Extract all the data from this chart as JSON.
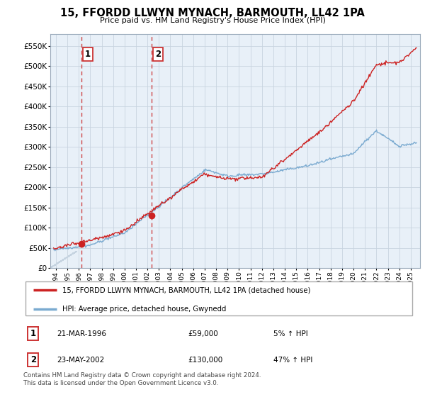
{
  "title": "15, FFORDD LLWYN MYNACH, BARMOUTH, LL42 1PA",
  "subtitle": "Price paid vs. HM Land Registry's House Price Index (HPI)",
  "legend_line1": "15, FFORDD LLWYN MYNACH, BARMOUTH, LL42 1PA (detached house)",
  "legend_line2": "HPI: Average price, detached house, Gwynedd",
  "footer": "Contains HM Land Registry data © Crown copyright and database right 2024.\nThis data is licensed under the Open Government Licence v3.0.",
  "transaction1_date": "21-MAR-1996",
  "transaction1_price": "£59,000",
  "transaction1_hpi": "5% ↑ HPI",
  "transaction2_date": "23-MAY-2002",
  "transaction2_price": "£130,000",
  "transaction2_hpi": "47% ↑ HPI",
  "transaction1_x": 1996.22,
  "transaction1_y": 59000,
  "transaction2_x": 2002.39,
  "transaction2_y": 130000,
  "vline1_x": 1996.22,
  "vline2_x": 2002.39,
  "hpi_color": "#7aaad0",
  "price_color": "#cc2222",
  "vline_color": "#cc3333",
  "grid_color": "#c8d4e0",
  "bg_color": "#e8f0f8",
  "hatch_color": "#c5d3e0",
  "ylim": [
    0,
    580000
  ],
  "xlim": [
    1993.5,
    2025.8
  ],
  "yticks": [
    0,
    50000,
    100000,
    150000,
    200000,
    250000,
    300000,
    350000,
    400000,
    450000,
    500000,
    550000
  ],
  "xticks": [
    1994,
    1995,
    1996,
    1997,
    1998,
    1999,
    2000,
    2001,
    2002,
    2003,
    2004,
    2005,
    2006,
    2007,
    2008,
    2009,
    2010,
    2011,
    2012,
    2013,
    2014,
    2015,
    2016,
    2017,
    2018,
    2019,
    2020,
    2021,
    2022,
    2023,
    2024,
    2025
  ]
}
